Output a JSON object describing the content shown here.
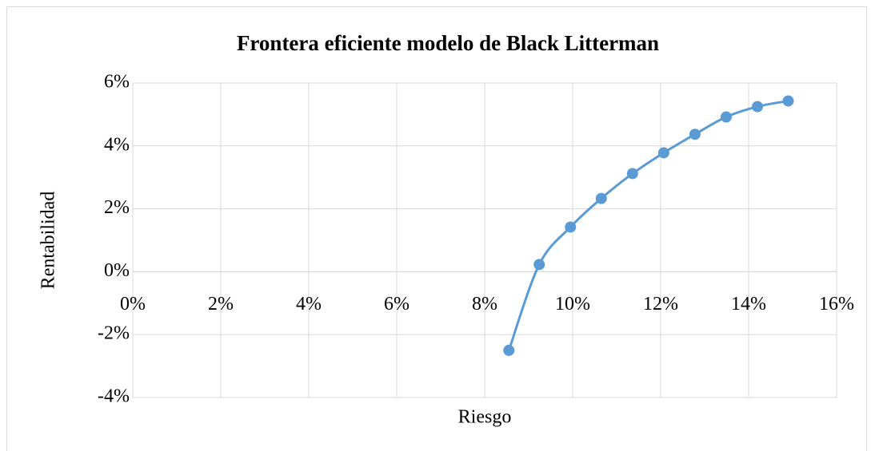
{
  "chart_data": {
    "type": "scatter",
    "title": "Frontera eficiente modelo de Black Litterman",
    "x_label": "Riesgo",
    "y_label": "Rentabilidad",
    "x": [
      8.55,
      9.24,
      9.95,
      10.65,
      11.36,
      12.07,
      12.78,
      13.49,
      14.2,
      14.9
    ],
    "values": [
      -2.5,
      0.23,
      1.42,
      2.33,
      3.12,
      3.78,
      4.37,
      4.92,
      5.25,
      5.43
    ],
    "color": "#5b9bd5",
    "smooth": true,
    "grid": true,
    "xlim": [
      0,
      16
    ],
    "xticks": [
      {
        "value": 0,
        "label": "0%"
      },
      {
        "value": 2,
        "label": "2%"
      },
      {
        "value": 4,
        "label": "4%"
      },
      {
        "value": 6,
        "label": "6%"
      },
      {
        "value": 8,
        "label": "8%"
      },
      {
        "value": 10,
        "label": "10%"
      },
      {
        "value": 12,
        "label": "12%"
      },
      {
        "value": 14,
        "label": "14%"
      },
      {
        "value": 16,
        "label": "16%"
      }
    ],
    "ylim": [
      -4,
      6
    ],
    "yticks": [
      {
        "value": -4,
        "label": "-4%"
      },
      {
        "value": -2,
        "label": "-2%"
      },
      {
        "value": 0,
        "label": "0%"
      },
      {
        "value": 2,
        "label": "2%"
      },
      {
        "value": 4,
        "label": "4%"
      },
      {
        "value": 6,
        "label": "6%"
      }
    ]
  }
}
